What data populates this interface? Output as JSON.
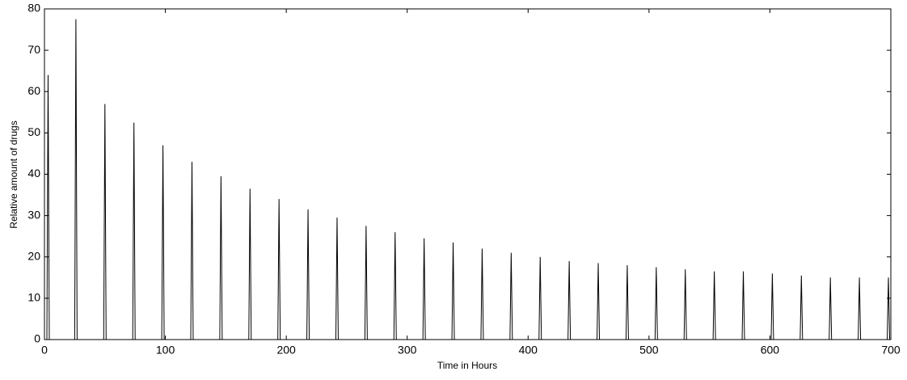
{
  "chart_data": {
    "type": "line",
    "xlabel": "Time in Hours",
    "ylabel": "Relative amount of drugs",
    "x": [
      2,
      3,
      4,
      25,
      26,
      27,
      49,
      50,
      51,
      73,
      74,
      75,
      97,
      98,
      99,
      121,
      122,
      123,
      145,
      146,
      147,
      169,
      170,
      171,
      193,
      194,
      195,
      217,
      218,
      219,
      241,
      242,
      243,
      265,
      266,
      267,
      289,
      290,
      291,
      313,
      314,
      315,
      337,
      338,
      339,
      361,
      362,
      363,
      385,
      386,
      387,
      409,
      410,
      411,
      433,
      434,
      435,
      457,
      458,
      459,
      481,
      482,
      483,
      505,
      506,
      507,
      529,
      530,
      531,
      553,
      554,
      555,
      577,
      578,
      579,
      601,
      602,
      603,
      625,
      626,
      627,
      649,
      650,
      651,
      673,
      674,
      675,
      697,
      698,
      699
    ],
    "series": [
      {
        "color": "#000000",
        "values": [
          0,
          64,
          0,
          0,
          77.5,
          0,
          0,
          57,
          0,
          0,
          52.5,
          0,
          0,
          47,
          0,
          0,
          43,
          0,
          0,
          39.5,
          0,
          0,
          36.5,
          0,
          0,
          34,
          0,
          0,
          31.5,
          0,
          0,
          29.5,
          0,
          0,
          27.5,
          0,
          0,
          26,
          0,
          0,
          24.5,
          0,
          0,
          23.5,
          0,
          0,
          22,
          0,
          0,
          21,
          0,
          0,
          20,
          0,
          0,
          19,
          0,
          0,
          18.5,
          0,
          0,
          18,
          0,
          0,
          17.5,
          0,
          0,
          17,
          0,
          0,
          16.5,
          0,
          0,
          16.5,
          0,
          0,
          16,
          0,
          0,
          15.5,
          0,
          0,
          15,
          0,
          0,
          15,
          0,
          0,
          15,
          0
        ]
      }
    ],
    "xlim": [
      0,
      700
    ],
    "xticks": [
      0,
      100,
      200,
      300,
      400,
      500,
      600,
      700
    ],
    "ylim": [
      0,
      80
    ],
    "yticks": [
      0,
      10,
      20,
      30,
      40,
      50,
      60,
      70,
      80
    ]
  }
}
